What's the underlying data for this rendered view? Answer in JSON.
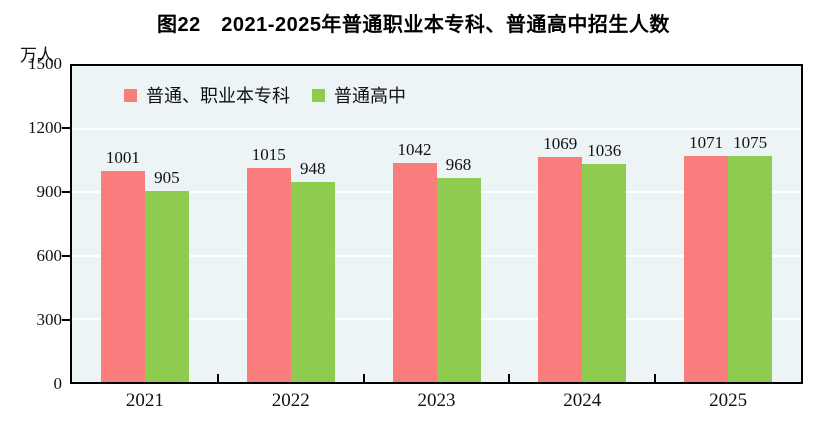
{
  "title": "图22　2021-2025年普通职业本专科、普通高中招生人数",
  "y_unit": "万人",
  "chart_data": {
    "type": "bar",
    "title": "图22　2021-2025年普通职业本专科、普通高中招生人数",
    "xlabel": "",
    "ylabel": "万人",
    "categories": [
      "2021",
      "2022",
      "2023",
      "2024",
      "2025"
    ],
    "series": [
      {
        "name": "普通、职业本专科",
        "color": "#FA7D7D",
        "values": [
          1001,
          1015,
          1042,
          1069,
          1071
        ]
      },
      {
        "name": "普通高中",
        "color": "#8ECC4F",
        "values": [
          905,
          948,
          968,
          1036,
          1075
        ]
      }
    ],
    "ylim": [
      0,
      1500
    ],
    "yticks": [
      0,
      300,
      600,
      900,
      1200,
      1500
    ],
    "grid": true,
    "grid_color": "#FFFFFF",
    "plot_background": "#EDF4F6",
    "border_color": "#000000",
    "legend_position": "top-left-inside",
    "data_labels": true
  }
}
